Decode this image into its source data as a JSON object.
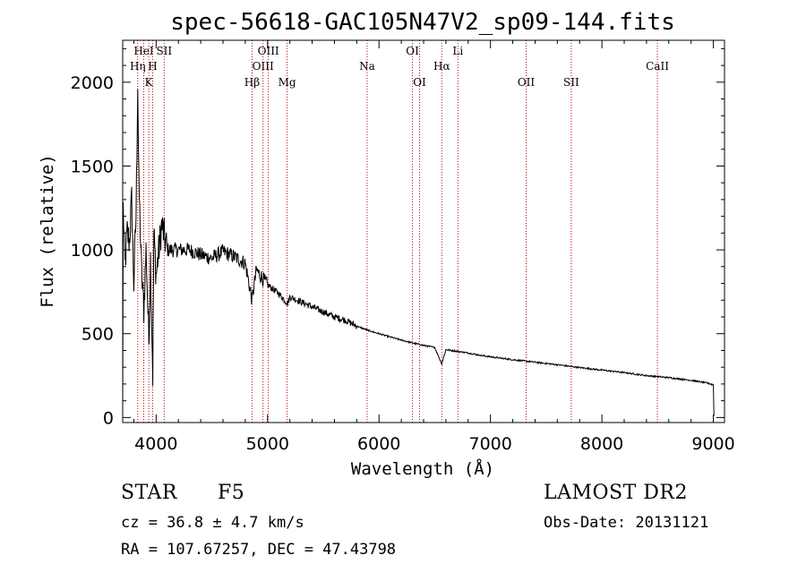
{
  "chart_data": {
    "type": "line",
    "title": "spec-56618-GAC105N47V2_sp09-144.fits",
    "xlabel": "Wavelength (Å)",
    "ylabel": "Flux (relative)",
    "xlim": [
      3700,
      9100
    ],
    "ylim": [
      -30,
      2250
    ],
    "x_ticks": [
      4000,
      5000,
      6000,
      7000,
      8000,
      9000
    ],
    "y_ticks": [
      0,
      500,
      1000,
      1500,
      2000
    ],
    "grid": false,
    "line_color": "#000000",
    "marker_color": "#cc0000",
    "spectrum_anchors": [
      [
        3700,
        20
      ],
      [
        3705,
        1250
      ],
      [
        3720,
        900
      ],
      [
        3740,
        1100
      ],
      [
        3760,
        1050
      ],
      [
        3780,
        1300
      ],
      [
        3800,
        800
      ],
      [
        3820,
        1200
      ],
      [
        3835,
        2000
      ],
      [
        3845,
        1400
      ],
      [
        3870,
        850
      ],
      [
        3890,
        650
      ],
      [
        3910,
        1000
      ],
      [
        3935,
        450
      ],
      [
        3950,
        950
      ],
      [
        3970,
        250
      ],
      [
        3980,
        1100
      ],
      [
        4000,
        850
      ],
      [
        4050,
        1150
      ],
      [
        4100,
        1000
      ],
      [
        4200,
        1000
      ],
      [
        4300,
        1000
      ],
      [
        4400,
        970
      ],
      [
        4500,
        950
      ],
      [
        4600,
        990
      ],
      [
        4700,
        960
      ],
      [
        4800,
        920
      ],
      [
        4860,
        700
      ],
      [
        4900,
        880
      ],
      [
        5000,
        790
      ],
      [
        5100,
        740
      ],
      [
        5180,
        680
      ],
      [
        5200,
        720
      ],
      [
        5300,
        690
      ],
      [
        5400,
        660
      ],
      [
        5500,
        630
      ],
      [
        5600,
        600
      ],
      [
        5700,
        580
      ],
      [
        5800,
        545
      ],
      [
        5900,
        520
      ],
      [
        6000,
        500
      ],
      [
        6100,
        480
      ],
      [
        6200,
        462
      ],
      [
        6300,
        445
      ],
      [
        6400,
        430
      ],
      [
        6500,
        418
      ],
      [
        6563,
        320
      ],
      [
        6600,
        405
      ],
      [
        6700,
        395
      ],
      [
        6800,
        385
      ],
      [
        6900,
        372
      ],
      [
        7000,
        362
      ],
      [
        7200,
        345
      ],
      [
        7400,
        330
      ],
      [
        7600,
        315
      ],
      [
        7800,
        298
      ],
      [
        8000,
        283
      ],
      [
        8200,
        268
      ],
      [
        8400,
        250
      ],
      [
        8600,
        238
      ],
      [
        8800,
        222
      ],
      [
        8950,
        205
      ],
      [
        9000,
        195
      ],
      [
        9005,
        10
      ]
    ],
    "line_markers": [
      {
        "label": "HeI",
        "x": 3889,
        "row": 0
      },
      {
        "label": "SII",
        "x": 4072,
        "row": 0
      },
      {
        "label": "Hη",
        "x": 3835,
        "row": 1
      },
      {
        "label": "H",
        "x": 3969,
        "row": 1
      },
      {
        "label": "K",
        "x": 3934,
        "row": 2
      },
      {
        "label": "OIII",
        "x": 5007,
        "row": 0
      },
      {
        "label": "OIII",
        "x": 4959,
        "row": 1
      },
      {
        "label": "Hβ",
        "x": 4861,
        "row": 2
      },
      {
        "label": "Mg",
        "x": 5175,
        "row": 2
      },
      {
        "label": "Na",
        "x": 5893,
        "row": 1
      },
      {
        "label": "OI",
        "x": 6300,
        "row": 0
      },
      {
        "label": "OI",
        "x": 6364,
        "row": 2
      },
      {
        "label": "Hα",
        "x": 6563,
        "row": 1
      },
      {
        "label": "Li",
        "x": 6708,
        "row": 0
      },
      {
        "label": "OII",
        "x": 7320,
        "row": 2
      },
      {
        "label": "SII",
        "x": 7725,
        "row": 2
      },
      {
        "label": "CaII",
        "x": 8498,
        "row": 1
      }
    ]
  },
  "info": {
    "object_class": "STAR",
    "subclass": "F5",
    "survey": "LAMOST DR2",
    "cz": "cz = 36.8 ± 4.7 km/s",
    "obs_date": "Obs-Date: 20131121",
    "coords": "RA = 107.67257, DEC =  47.43798"
  }
}
